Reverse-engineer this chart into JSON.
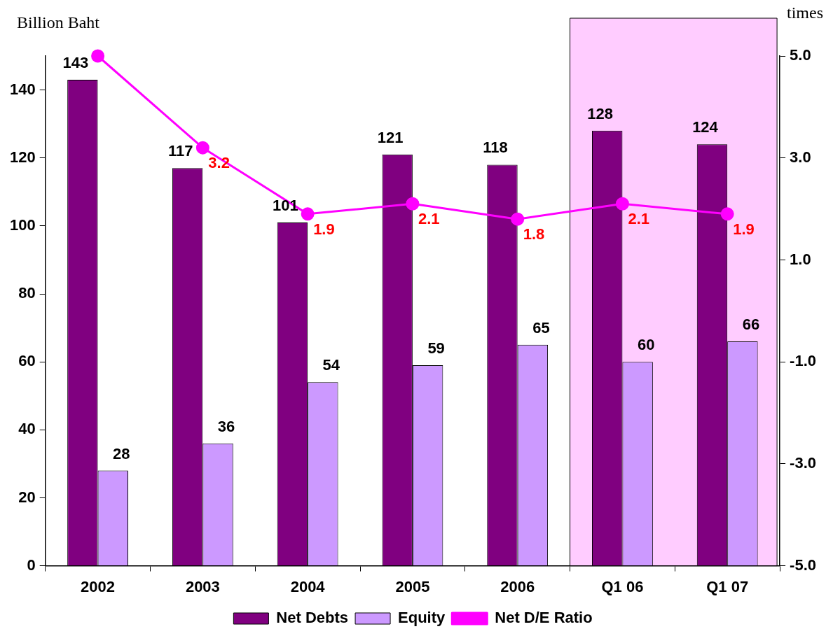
{
  "chart_data": {
    "type": "bar",
    "ylabel": "Billion Baht",
    "y2label": "times",
    "categories": [
      "2002",
      "2003",
      "2004",
      "2005",
      "2006",
      "Q1 06",
      "Q1 07"
    ],
    "series": [
      {
        "name": "Net Debts",
        "color": "#800080",
        "values": [
          143,
          117,
          101,
          121,
          118,
          128,
          124
        ],
        "value_labels": [
          "143",
          "117",
          "101",
          "121",
          "118",
          "128",
          "124"
        ]
      },
      {
        "name": "Equity",
        "color": "#cc99ff",
        "values": [
          28,
          36,
          54,
          59,
          65,
          60,
          66
        ],
        "value_labels": [
          "28",
          "36",
          "54",
          "59",
          "65",
          "60",
          "66"
        ]
      },
      {
        "name": "Net D/E Ratio",
        "type": "line",
        "axis": "y2",
        "color": "#ff00ff",
        "marker": "circle",
        "line_style": "solid",
        "values": [
          5.0,
          3.2,
          1.9,
          2.1,
          1.8,
          2.1,
          1.9
        ],
        "value_labels": [
          null,
          "3.2",
          "1.9",
          "2.1",
          "1.8",
          "2.1",
          "1.9"
        ]
      }
    ],
    "ylim": [
      0,
      150
    ],
    "yticks": [
      0,
      20,
      40,
      60,
      80,
      100,
      120,
      140
    ],
    "y2lim": [
      -5,
      5
    ],
    "y2ticks": [
      {
        "value": -5,
        "label": "-5.0"
      },
      {
        "value": -3,
        "label": "-3.0"
      },
      {
        "value": -1,
        "label": "-1.0"
      },
      {
        "value": 1,
        "label": "1.0"
      },
      {
        "value": 3,
        "label": "3.0"
      },
      {
        "value": 5,
        "label": "5.0"
      }
    ],
    "bands": [
      {
        "axis": "x",
        "from": "Q1 06",
        "to": "Q1 07",
        "color": "#ffccff"
      }
    ],
    "grid": false,
    "legend": "bottom"
  }
}
